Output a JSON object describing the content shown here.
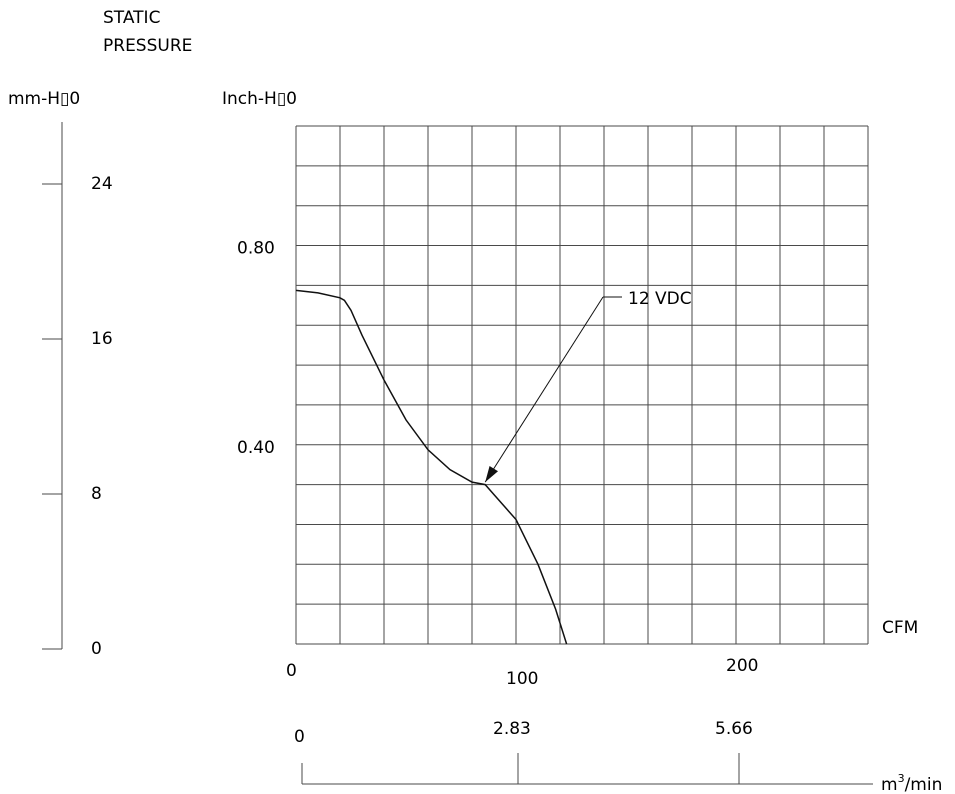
{
  "chart_data": {
    "type": "line",
    "title": "STATIC\nPRESSURE",
    "title_lines": [
      "STATIC",
      "PRESSURE"
    ],
    "ylabel_left": "mm-H▯0",
    "ylabel": "Inch-H▯0",
    "xlabel": "CFM",
    "x2label": "m³/min",
    "x2unit_base": "m",
    "x2unit_sup": "3",
    "x2unit_rest": "/min",
    "xlim": [
      0,
      260
    ],
    "ylim": [
      0,
      1.04
    ],
    "xticks": [
      0,
      100,
      200
    ],
    "xtick_labels": [
      "0",
      "100",
      "200"
    ],
    "yticks": [
      0.4,
      0.8
    ],
    "ytick_labels": [
      "0.40",
      "0.80"
    ],
    "mm_ticks": [
      0,
      8,
      16,
      24
    ],
    "mm_tick_labels": [
      "0",
      "8",
      "16",
      "24"
    ],
    "m3_ticks": [
      0,
      2.83,
      5.66
    ],
    "m3_tick_labels": [
      "0",
      "2.83",
      "5.66"
    ],
    "grid": true,
    "grid_x_step": 20,
    "grid_y_step": 0.08,
    "series": [
      {
        "name": "12 VDC",
        "x": [
          0,
          10,
          20,
          22,
          25,
          30,
          40,
          50,
          60,
          70,
          80,
          86,
          90,
          100,
          110,
          118,
          123
        ],
        "y": [
          0.71,
          0.705,
          0.695,
          0.69,
          0.67,
          0.62,
          0.53,
          0.45,
          0.39,
          0.35,
          0.325,
          0.32,
          0.3,
          0.25,
          0.16,
          0.07,
          0.0
        ]
      }
    ],
    "annotations": [
      {
        "text": "12 VDC",
        "points_to": [
          86,
          0.325
        ]
      }
    ]
  }
}
